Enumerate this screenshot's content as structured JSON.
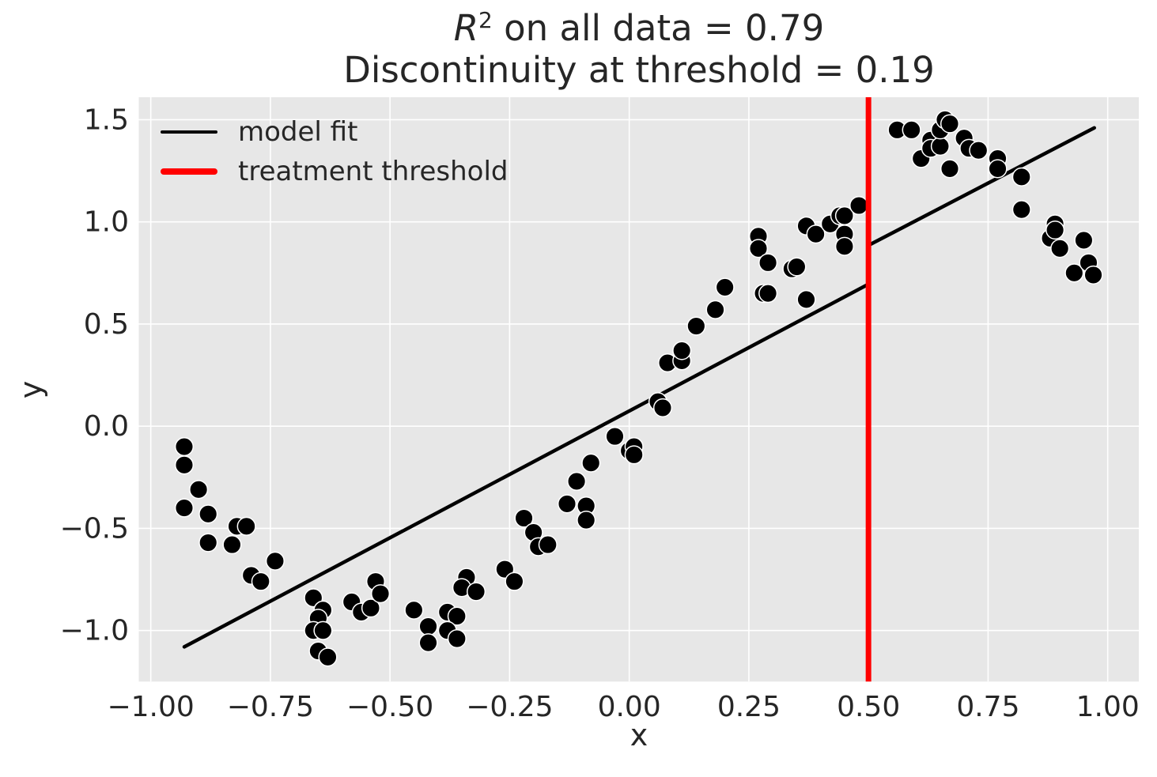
{
  "figure": {
    "title_r": "R",
    "title_exp": "2",
    "title_line1_rest": " on all data = 0.79",
    "title_line2": "Discontinuity at threshold = 0.19"
  },
  "chart_data": {
    "type": "scatter",
    "title": "R^2 on all data = 0.79\nDiscontinuity at threshold = 0.19",
    "xlabel": "x",
    "ylabel": "y",
    "r_squared": 0.79,
    "discontinuity_at_threshold": 0.19,
    "xlim": [
      -1.025,
      1.065
    ],
    "ylim": [
      -1.25,
      1.61
    ],
    "grid": true,
    "background_color": "#e7e7e7",
    "grid_color": "#ffffff",
    "text_color": "#262626",
    "x_ticks": [
      -1.0,
      -0.75,
      -0.5,
      -0.25,
      0.0,
      0.25,
      0.5,
      0.75,
      1.0
    ],
    "x_tick_labels": [
      "−1.00",
      "−0.75",
      "−0.50",
      "−0.25",
      "0.00",
      "0.25",
      "0.50",
      "0.75",
      "1.00"
    ],
    "y_ticks": [
      1.5,
      1.0,
      0.5,
      0.0,
      -0.5,
      -1.0
    ],
    "y_tick_labels": [
      "1.5",
      "1.0",
      "0.5",
      "0.0",
      "−0.5",
      "−1.0"
    ],
    "threshold": {
      "x": 0.5,
      "color": "#ff0000",
      "line_width": 7
    },
    "model_fit": {
      "color": "#000000",
      "line_width": 4.5,
      "segments": [
        [
          [
            -0.93,
            -1.08
          ],
          [
            0.5,
            0.695
          ]
        ],
        [
          [
            0.5,
            0.885
          ],
          [
            0.972,
            1.46
          ]
        ]
      ]
    },
    "legend": {
      "position": "upper-left",
      "entries": [
        {
          "label": "model fit",
          "color": "#000000",
          "thickness": 4
        },
        {
          "label": "treatment threshold",
          "color": "#ff0000",
          "thickness": 8
        }
      ]
    },
    "scatter": {
      "color": "#000000",
      "edge_color": "#ffffff",
      "marker_radius": 11.3,
      "points": [
        [
          -0.93,
          -0.1
        ],
        [
          -0.93,
          -0.19
        ],
        [
          -0.9,
          -0.31
        ],
        [
          -0.93,
          -0.4
        ],
        [
          -0.88,
          -0.43
        ],
        [
          -0.82,
          -0.49
        ],
        [
          -0.8,
          -0.49
        ],
        [
          -0.88,
          -0.57
        ],
        [
          -0.83,
          -0.58
        ],
        [
          -0.74,
          -0.66
        ],
        [
          -0.79,
          -0.73
        ],
        [
          -0.77,
          -0.76
        ],
        [
          -0.66,
          -0.84
        ],
        [
          -0.64,
          -0.9
        ],
        [
          -0.65,
          -0.94
        ],
        [
          -0.66,
          -1.0
        ],
        [
          -0.64,
          -1.0
        ],
        [
          -0.65,
          -1.1
        ],
        [
          -0.63,
          -1.13
        ],
        [
          -0.58,
          -0.86
        ],
        [
          -0.56,
          -0.91
        ],
        [
          -0.54,
          -0.89
        ],
        [
          -0.53,
          -0.76
        ],
        [
          -0.52,
          -0.82
        ],
        [
          -0.45,
          -0.9
        ],
        [
          -0.42,
          -0.98
        ],
        [
          -0.42,
          -1.06
        ],
        [
          -0.38,
          -0.91
        ],
        [
          -0.36,
          -0.93
        ],
        [
          -0.38,
          -1.0
        ],
        [
          -0.36,
          -1.04
        ],
        [
          -0.34,
          -0.74
        ],
        [
          -0.35,
          -0.79
        ],
        [
          -0.32,
          -0.81
        ],
        [
          -0.26,
          -0.7
        ],
        [
          -0.24,
          -0.76
        ],
        [
          -0.22,
          -0.45
        ],
        [
          -0.2,
          -0.52
        ],
        [
          -0.19,
          -0.59
        ],
        [
          -0.17,
          -0.58
        ],
        [
          -0.13,
          -0.38
        ],
        [
          -0.09,
          -0.39
        ],
        [
          -0.09,
          -0.46
        ],
        [
          -0.11,
          -0.27
        ],
        [
          -0.08,
          -0.18
        ],
        [
          -0.03,
          -0.05
        ],
        [
          0.0,
          -0.12
        ],
        [
          0.01,
          -0.1
        ],
        [
          0.01,
          -0.14
        ],
        [
          0.06,
          0.12
        ],
        [
          0.07,
          0.09
        ],
        [
          0.08,
          0.31
        ],
        [
          0.11,
          0.32
        ],
        [
          0.11,
          0.37
        ],
        [
          0.14,
          0.49
        ],
        [
          0.18,
          0.57
        ],
        [
          0.2,
          0.68
        ],
        [
          0.27,
          0.93
        ],
        [
          0.27,
          0.87
        ],
        [
          0.28,
          0.65
        ],
        [
          0.29,
          0.65
        ],
        [
          0.29,
          0.8
        ],
        [
          0.34,
          0.77
        ],
        [
          0.35,
          0.78
        ],
        [
          0.37,
          0.98
        ],
        [
          0.37,
          0.62
        ],
        [
          0.39,
          0.94
        ],
        [
          0.42,
          0.99
        ],
        [
          0.44,
          1.03
        ],
        [
          0.45,
          1.03
        ],
        [
          0.45,
          0.94
        ],
        [
          0.45,
          0.88
        ],
        [
          0.48,
          1.08
        ],
        [
          0.56,
          1.45
        ],
        [
          0.59,
          1.45
        ],
        [
          0.61,
          1.31
        ],
        [
          0.63,
          1.4
        ],
        [
          0.63,
          1.36
        ],
        [
          0.65,
          1.37
        ],
        [
          0.65,
          1.45
        ],
        [
          0.66,
          1.5
        ],
        [
          0.67,
          1.48
        ],
        [
          0.67,
          1.26
        ],
        [
          0.7,
          1.41
        ],
        [
          0.71,
          1.36
        ],
        [
          0.73,
          1.35
        ],
        [
          0.77,
          1.31
        ],
        [
          0.77,
          1.26
        ],
        [
          0.82,
          1.22
        ],
        [
          0.82,
          1.06
        ],
        [
          0.88,
          0.92
        ],
        [
          0.89,
          0.99
        ],
        [
          0.89,
          0.96
        ],
        [
          0.9,
          0.87
        ],
        [
          0.93,
          0.75
        ],
        [
          0.95,
          0.91
        ],
        [
          0.96,
          0.8
        ],
        [
          0.97,
          0.74
        ]
      ]
    }
  }
}
